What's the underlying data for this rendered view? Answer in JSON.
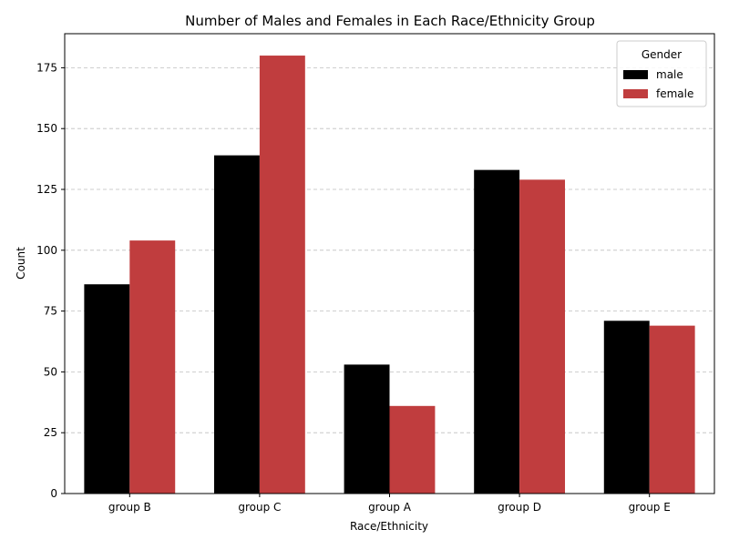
{
  "chart_data": {
    "type": "bar",
    "title": "Number of Males and Females in Each Race/Ethnicity Group",
    "xlabel": "Race/Ethnicity",
    "ylabel": "Count",
    "categories": [
      "group B",
      "group C",
      "group A",
      "group D",
      "group E"
    ],
    "series": [
      {
        "name": "male",
        "values": [
          86,
          139,
          53,
          133,
          71
        ],
        "color": "#000000"
      },
      {
        "name": "female",
        "values": [
          104,
          180,
          36,
          129,
          69
        ],
        "color": "#c03d3e"
      }
    ],
    "ylim": [
      0,
      189
    ],
    "yticks": [
      0,
      25,
      50,
      75,
      100,
      125,
      150,
      175
    ],
    "grid": {
      "y": true,
      "style": "dashed",
      "color": "#bfbfbf"
    },
    "legend": {
      "title": "Gender",
      "position": "top-right"
    }
  }
}
